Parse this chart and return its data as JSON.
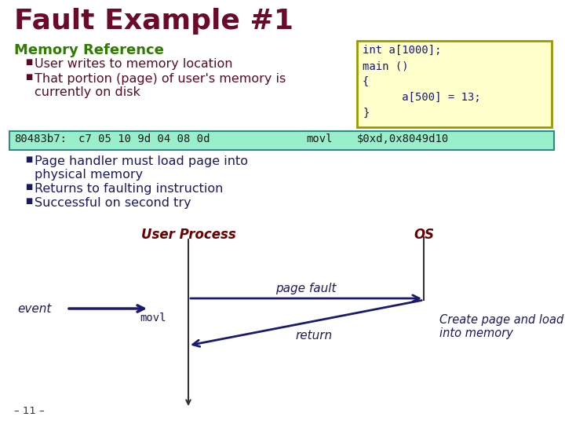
{
  "title": "Fault Example #1",
  "title_color": "#6b0a2a",
  "section_title": "Memory Reference",
  "section_title_color": "#2e7d00",
  "bullet1": "User writes to memory location",
  "bullet2a": "That portion (page) of user's memory is",
  "bullet2b": "currently on disk",
  "code_box_bg": "#ffffcc",
  "code_box_border": "#999900",
  "code_lines": [
    "int a[1000];",
    "main ()",
    "{",
    "      a[500] = 13;",
    "}"
  ],
  "asm_box_bg": "#99eecc",
  "asm_box_border": "#338888",
  "asm_col1": "80483b7:",
  "asm_col2": "c7 05 10 9d 04 08 0d",
  "asm_col3": "movl",
  "asm_col4": "$0xd,0x8049d10",
  "bullet3a": "Page handler must load page into",
  "bullet3b": "physical memory",
  "bullet4": "Returns to faulting instruction",
  "bullet5": "Successful on second try",
  "user_process_label": "User Process",
  "os_label": "OS",
  "event_label": "event",
  "movl_label": "movl",
  "page_fault_label": "page fault",
  "return_label": "return",
  "create_label1": "Create page and load",
  "create_label2": "into memory",
  "footer": "– 11 –",
  "bullet_color": "#5c0a20",
  "body_color": "#1a1a5e",
  "arrow_color": "#1a1a6e",
  "diag_label_color": "#6b0000",
  "diag_text_color": "#1a1a5e"
}
